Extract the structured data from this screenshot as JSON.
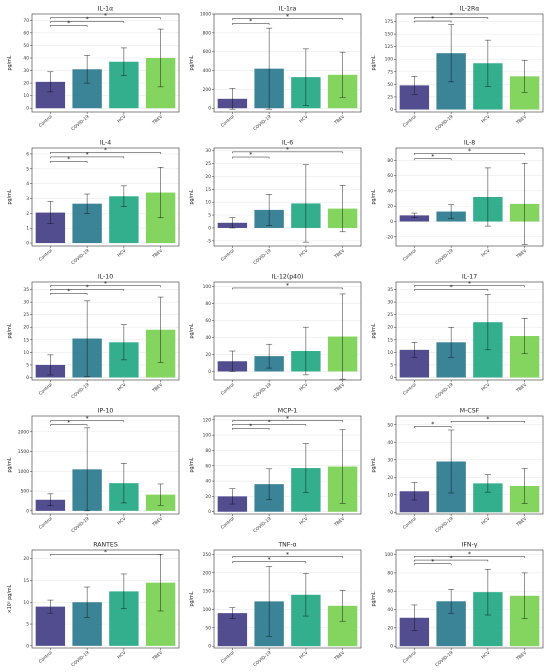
{
  "figure": {
    "background": "#ffffff",
    "grid_color": "#e6e6e6",
    "bar_colors": [
      "#433e85",
      "#2a788e",
      "#22a884",
      "#7ad151"
    ],
    "bar_opacity": 0.92
  },
  "chart_data": [
    {
      "type": "bar",
      "title": "IL-1α",
      "ylabel": "pg/mL",
      "categories": [
        "Control",
        "COVID-19",
        "HCV",
        "TBEV"
      ],
      "values": [
        21,
        31,
        37,
        40
      ],
      "errors": [
        8,
        11,
        11,
        23
      ],
      "ylim": [
        -3,
        75
      ],
      "yticks": [
        0,
        10,
        20,
        30,
        40,
        50,
        60,
        70
      ],
      "significance": [
        {
          "from": 0,
          "to": 3,
          "y": 72,
          "label": "*"
        },
        {
          "from": 0,
          "to": 2,
          "y": 69,
          "label": "*"
        },
        {
          "from": 0,
          "to": 1,
          "y": 66,
          "label": "*"
        }
      ]
    },
    {
      "type": "bar",
      "title": "IL-1ra",
      "ylabel": "pg/mL",
      "categories": [
        "Control",
        "COVID-19",
        "HCV",
        "TBEV"
      ],
      "values": [
        100,
        420,
        330,
        355
      ],
      "errors": [
        110,
        430,
        300,
        240
      ],
      "ylim": [
        -40,
        1000
      ],
      "yticks": [
        0,
        200,
        400,
        600,
        800,
        1000
      ],
      "significance": [
        {
          "from": 0,
          "to": 3,
          "y": 950,
          "label": "*"
        },
        {
          "from": 0,
          "to": 1,
          "y": 900,
          "label": "*"
        }
      ]
    },
    {
      "type": "bar",
      "title": "IL-2Rα",
      "ylabel": "pg/mL",
      "categories": [
        "Control",
        "COVID-19",
        "HCV",
        "TBEV"
      ],
      "values": [
        48,
        112,
        92,
        66
      ],
      "errors": [
        18,
        57,
        46,
        32
      ],
      "ylim": [
        -5,
        190
      ],
      "yticks": [
        0,
        25,
        50,
        75,
        100,
        125,
        150,
        175
      ],
      "significance": [
        {
          "from": 0,
          "to": 2,
          "y": 183,
          "label": "*"
        },
        {
          "from": 0,
          "to": 1,
          "y": 176,
          "label": "*"
        }
      ]
    },
    {
      "type": "bar",
      "title": "IL-4",
      "ylabel": "pg/mL",
      "categories": [
        "Control",
        "COVID-19",
        "HCV",
        "TBEV"
      ],
      "values": [
        2.05,
        2.65,
        3.15,
        3.4
      ],
      "errors": [
        0.75,
        0.65,
        0.7,
        1.7
      ],
      "ylim": [
        -0.2,
        6.4
      ],
      "yticks": [
        0,
        1,
        2,
        3,
        4,
        5,
        6
      ],
      "significance": [
        {
          "from": 0,
          "to": 3,
          "y": 6.1,
          "label": "*"
        },
        {
          "from": 0,
          "to": 2,
          "y": 5.8,
          "label": "*"
        },
        {
          "from": 0,
          "to": 1,
          "y": 5.5,
          "label": "*"
        }
      ]
    },
    {
      "type": "bar",
      "title": "IL-6",
      "ylabel": "pg/mL",
      "categories": [
        "Control",
        "COVID-19",
        "HCV",
        "TBEV"
      ],
      "values": [
        2,
        7,
        9.5,
        7.5
      ],
      "errors": [
        2,
        6,
        15,
        9
      ],
      "ylim": [
        -7,
        31
      ],
      "yticks": [
        -5,
        0,
        5,
        10,
        15,
        20,
        25,
        30
      ],
      "significance": [
        {
          "from": 0,
          "to": 3,
          "y": 29.5,
          "label": "*"
        },
        {
          "from": 0,
          "to": 1,
          "y": 27.5,
          "label": "*"
        }
      ]
    },
    {
      "type": "bar",
      "title": "IL-8",
      "ylabel": "pg/mL",
      "categories": [
        "Control",
        "COVID-19",
        "HCV",
        "TBEV"
      ],
      "values": [
        8,
        13,
        32,
        23
      ],
      "errors": [
        3,
        9,
        38,
        53
      ],
      "ylim": [
        -32,
        96
      ],
      "yticks": [
        -20,
        0,
        20,
        40,
        60,
        80
      ],
      "significance": [
        {
          "from": 0,
          "to": 3,
          "y": 89,
          "label": "*"
        },
        {
          "from": 0,
          "to": 1,
          "y": 82,
          "label": "*"
        }
      ]
    },
    {
      "type": "bar",
      "title": "IL-10",
      "ylabel": "pg/mL",
      "categories": [
        "Control",
        "COVID-19",
        "HCV",
        "TBEV"
      ],
      "values": [
        5,
        15.5,
        14,
        19
      ],
      "errors": [
        4,
        15,
        7,
        13
      ],
      "ylim": [
        -1,
        38
      ],
      "yticks": [
        0,
        5,
        10,
        15,
        20,
        25,
        30,
        35
      ],
      "significance": [
        {
          "from": 0,
          "to": 3,
          "y": 36.5,
          "label": "*"
        },
        {
          "from": 0,
          "to": 2,
          "y": 35,
          "label": "*"
        },
        {
          "from": 0,
          "to": 1,
          "y": 33.5,
          "label": "*"
        }
      ]
    },
    {
      "type": "bar",
      "title": "IL-12(p40)",
      "ylabel": "pg/mL",
      "categories": [
        "Control",
        "COVID-19",
        "HCV",
        "TBEV"
      ],
      "values": [
        12,
        18,
        24,
        41
      ],
      "errors": [
        12,
        14,
        28,
        50
      ],
      "ylim": [
        -10,
        105
      ],
      "yticks": [
        0,
        20,
        40,
        60,
        80,
        100
      ],
      "significance": [
        {
          "from": 0,
          "to": 3,
          "y": 98,
          "label": "*"
        }
      ]
    },
    {
      "type": "bar",
      "title": "IL-17",
      "ylabel": "pg/mL",
      "categories": [
        "Control",
        "COVID-19",
        "HCV",
        "TBEV"
      ],
      "values": [
        11,
        14,
        22,
        16.5
      ],
      "errors": [
        3,
        6,
        11,
        7
      ],
      "ylim": [
        -1,
        38
      ],
      "yticks": [
        0,
        5,
        10,
        15,
        20,
        25,
        30,
        35
      ],
      "significance": [
        {
          "from": 0,
          "to": 3,
          "y": 36.5,
          "label": "*"
        },
        {
          "from": 0,
          "to": 2,
          "y": 35,
          "label": "*"
        }
      ]
    },
    {
      "type": "bar",
      "title": "IP-10",
      "ylabel": "pg/mL",
      "categories": [
        "Control",
        "COVID-19",
        "HCV",
        "TBEV"
      ],
      "values": [
        280,
        1050,
        700,
        410
      ],
      "errors": [
        150,
        1050,
        500,
        270
      ],
      "ylim": [
        -80,
        2400
      ],
      "yticks": [
        0,
        500,
        1000,
        1500,
        2000
      ],
      "significance": [
        {
          "from": 0,
          "to": 2,
          "y": 2280,
          "label": "*"
        },
        {
          "from": 0,
          "to": 1,
          "y": 2180,
          "label": "*"
        }
      ]
    },
    {
      "type": "bar",
      "title": "MCP-1",
      "ylabel": "pg/mL",
      "categories": [
        "Control",
        "COVID-19",
        "HCV",
        "TBEV"
      ],
      "values": [
        20,
        36,
        57,
        59
      ],
      "errors": [
        10,
        20,
        32,
        48
      ],
      "ylim": [
        -3,
        125
      ],
      "yticks": [
        0,
        20,
        40,
        60,
        80,
        100,
        120
      ],
      "significance": [
        {
          "from": 0,
          "to": 3,
          "y": 119,
          "label": "*"
        },
        {
          "from": 0,
          "to": 2,
          "y": 114,
          "label": "*"
        },
        {
          "from": 0,
          "to": 1,
          "y": 109,
          "label": "*"
        }
      ]
    },
    {
      "type": "bar",
      "title": "M-CSF",
      "ylabel": "pg/mL",
      "categories": [
        "Control",
        "COVID-19",
        "HCV",
        "TBEV"
      ],
      "values": [
        12,
        29,
        16.5,
        15
      ],
      "errors": [
        5,
        18,
        5,
        10
      ],
      "ylim": [
        -1,
        55
      ],
      "yticks": [
        0,
        10,
        20,
        30,
        40,
        50
      ],
      "significance": [
        {
          "from": 1,
          "to": 3,
          "y": 52,
          "label": "*"
        },
        {
          "from": 0,
          "to": 1,
          "y": 49,
          "label": "*"
        }
      ]
    },
    {
      "type": "bar",
      "title": "RANTES",
      "ylabel": "×10³ pg/mL",
      "categories": [
        "Control",
        "COVID-19",
        "HCV",
        "TBEV"
      ],
      "values": [
        9,
        10,
        12.5,
        14.5
      ],
      "errors": [
        1.5,
        3.5,
        4,
        6.5
      ],
      "ylim": [
        -0.5,
        22
      ],
      "yticks": [
        0,
        5,
        10,
        15,
        20
      ],
      "significance": [
        {
          "from": 0,
          "to": 3,
          "y": 21,
          "label": "*"
        }
      ]
    },
    {
      "type": "bar",
      "title": "TNF-α",
      "ylabel": "pg/mL",
      "categories": [
        "Control",
        "COVID-19",
        "HCV",
        "TBEV"
      ],
      "values": [
        90,
        122,
        140,
        110
      ],
      "errors": [
        15,
        95,
        58,
        42
      ],
      "ylim": [
        -5,
        262
      ],
      "yticks": [
        0,
        50,
        100,
        150,
        200,
        250
      ],
      "significance": [
        {
          "from": 0,
          "to": 3,
          "y": 244,
          "label": "*"
        },
        {
          "from": 0,
          "to": 2,
          "y": 230,
          "label": "*"
        }
      ]
    },
    {
      "type": "bar",
      "title": "IFN-γ",
      "ylabel": "pg/mL",
      "categories": [
        "Control",
        "COVID-19",
        "HCV",
        "TBEV"
      ],
      "values": [
        31,
        49,
        59,
        55
      ],
      "errors": [
        14,
        13,
        25,
        25
      ],
      "ylim": [
        -2,
        105
      ],
      "yticks": [
        0,
        20,
        40,
        60,
        80,
        100
      ],
      "significance": [
        {
          "from": 0,
          "to": 3,
          "y": 98,
          "label": "*"
        },
        {
          "from": 0,
          "to": 2,
          "y": 94,
          "label": "*"
        },
        {
          "from": 0,
          "to": 1,
          "y": 90,
          "label": "*"
        }
      ]
    }
  ]
}
